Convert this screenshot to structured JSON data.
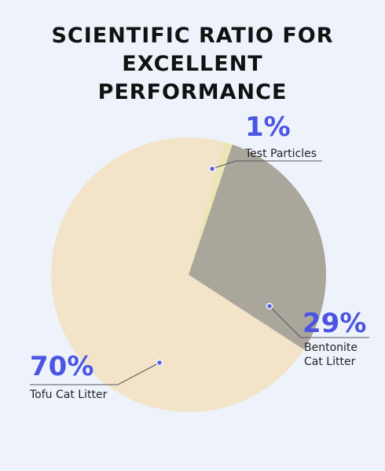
{
  "chart_data": {
    "type": "pie",
    "title": "SCIENTIFIC RATIO FOR EXCELLENT PERFORMANCE",
    "categories": [
      "Tofu Cat Litter",
      "Bentonite Cat Litter",
      "Test Particles"
    ],
    "values": [
      70,
      29,
      1
    ],
    "value_labels": [
      "70%",
      "29%",
      "1%"
    ],
    "colors": [
      "#f2e3c9",
      "#aaa69c",
      "#ebe6b4"
    ]
  }
}
